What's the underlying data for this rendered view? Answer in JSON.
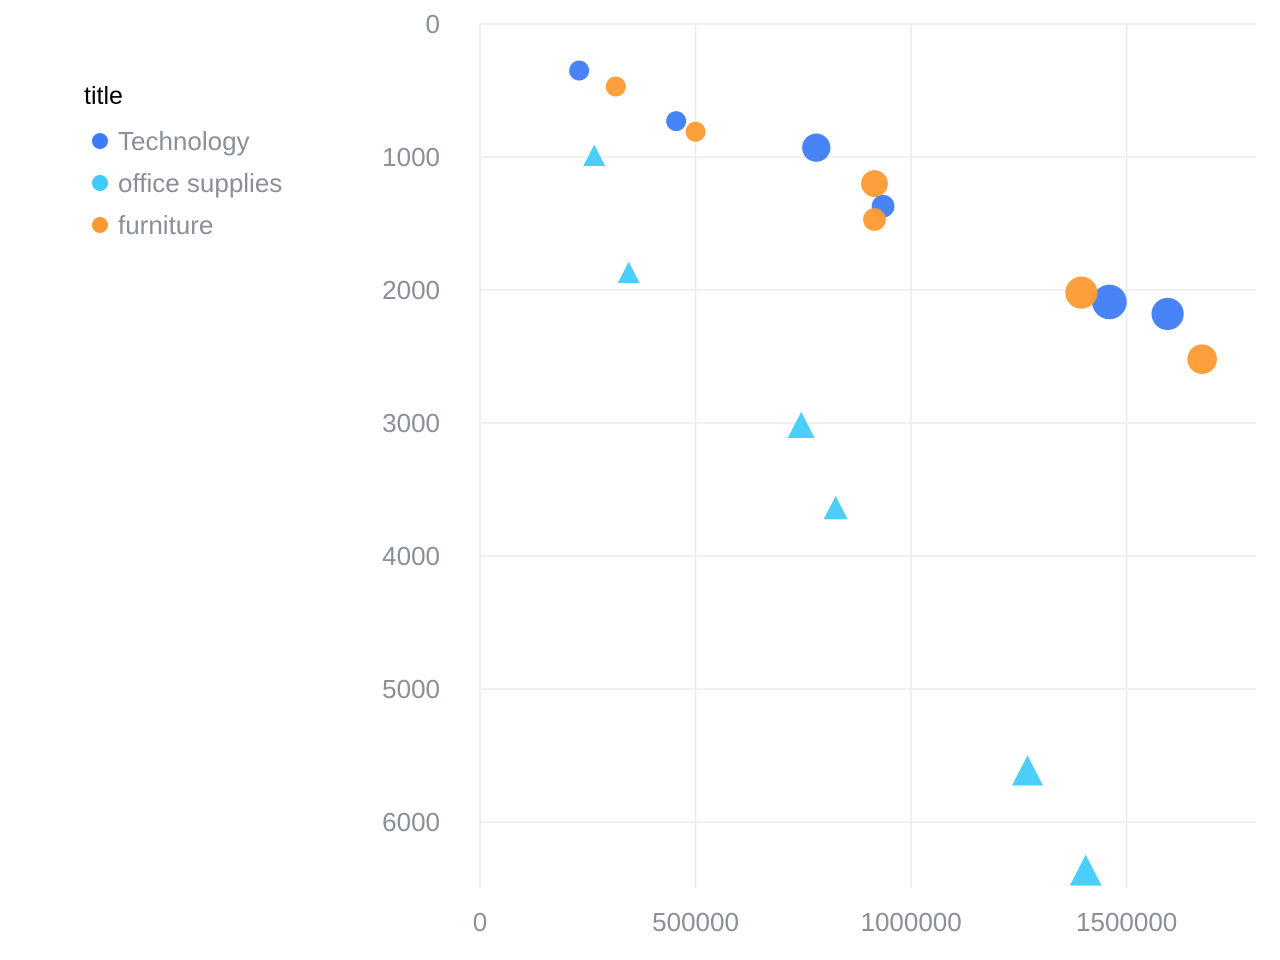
{
  "chart_data": {
    "type": "scatter",
    "title": "",
    "legend": {
      "title": "title",
      "placement": "top-left"
    },
    "xlabel": "",
    "ylabel": "",
    "xlim": [
      0,
      1800000
    ],
    "ylim": [
      0,
      6500
    ],
    "y_inverted": true,
    "x_ticks": [
      "0",
      "500000",
      "1000000",
      "1500000"
    ],
    "y_ticks": [
      "0",
      "1000",
      "2000",
      "3000",
      "4000",
      "5000",
      "6000"
    ],
    "grid": true,
    "series": [
      {
        "name": "Technology",
        "color": "#3e7cf7",
        "shape": "circle",
        "points": [
          {
            "x": 230000,
            "y": 350,
            "size": 1
          },
          {
            "x": 455000,
            "y": 730,
            "size": 1
          },
          {
            "x": 780000,
            "y": 930,
            "size": 2
          },
          {
            "x": 935000,
            "y": 1370,
            "size": 1.3
          },
          {
            "x": 1460000,
            "y": 2090,
            "size": 3
          },
          {
            "x": 1595000,
            "y": 2180,
            "size": 2.6
          }
        ]
      },
      {
        "name": "office supplies",
        "color": "#41cbf9",
        "shape": "triangle",
        "points": [
          {
            "x": 265000,
            "y": 1000,
            "size": 1
          },
          {
            "x": 345000,
            "y": 1880,
            "size": 1
          },
          {
            "x": 745000,
            "y": 3030,
            "size": 1.5
          },
          {
            "x": 825000,
            "y": 3650,
            "size": 1.2
          },
          {
            "x": 1270000,
            "y": 5630,
            "size": 2
          },
          {
            "x": 1405000,
            "y": 6380,
            "size": 2.1
          }
        ]
      },
      {
        "name": "furniture",
        "color": "#fc9a31",
        "shape": "circle",
        "points": [
          {
            "x": 315000,
            "y": 470,
            "size": 1
          },
          {
            "x": 500000,
            "y": 810,
            "size": 1
          },
          {
            "x": 915000,
            "y": 1200,
            "size": 1.8
          },
          {
            "x": 915000,
            "y": 1470,
            "size": 1.3
          },
          {
            "x": 1395000,
            "y": 2020,
            "size": 2.6
          },
          {
            "x": 1675000,
            "y": 2520,
            "size": 2.2
          }
        ]
      }
    ]
  }
}
